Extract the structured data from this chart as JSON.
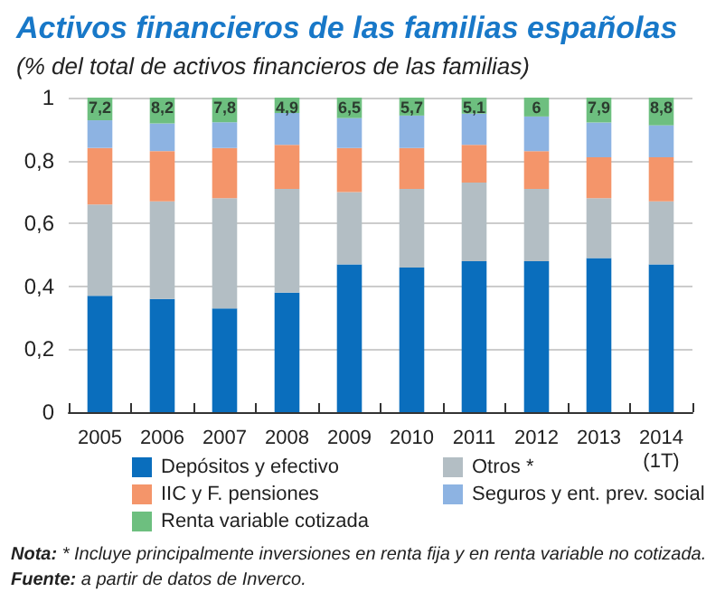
{
  "chart_data": {
    "type": "bar",
    "stacked": true,
    "title": "Activos financieros de las familias españolas",
    "subtitle": "(% del total de activos financieros de las familias)",
    "categories": [
      "2005",
      "2006",
      "2007",
      "2008",
      "2009",
      "2010",
      "2011",
      "2012",
      "2013",
      "2014\n(1T)"
    ],
    "series": [
      {
        "name": "Depósitos y efectivo",
        "color": "#0a6ebd",
        "values": [
          0.37,
          0.36,
          0.33,
          0.38,
          0.47,
          0.46,
          0.48,
          0.48,
          0.49,
          0.47
        ]
      },
      {
        "name": "Otros *",
        "color": "#b3bec4",
        "values": [
          0.29,
          0.31,
          0.35,
          0.33,
          0.23,
          0.25,
          0.25,
          0.23,
          0.19,
          0.2
        ]
      },
      {
        "name": "IIC y F. pensiones",
        "color": "#f4956a",
        "values": [
          0.18,
          0.16,
          0.16,
          0.14,
          0.14,
          0.13,
          0.12,
          0.12,
          0.13,
          0.14
        ]
      },
      {
        "name": "Seguros y ent. prev. social",
        "color": "#8db3e2",
        "values": [
          0.088,
          0.088,
          0.082,
          0.101,
          0.095,
          0.103,
          0.099,
          0.11,
          0.111,
          0.102
        ]
      },
      {
        "name": "Renta variable cotizada",
        "color": "#6dbf7f",
        "values": [
          0.072,
          0.082,
          0.078,
          0.049,
          0.065,
          0.057,
          0.051,
          0.06,
          0.079,
          0.088
        ]
      }
    ],
    "ylim": [
      0,
      1
    ],
    "yticks": [
      0,
      {
        "value": 0.2,
        "label": "0,2"
      },
      {
        "value": 0.4,
        "label": "0,4"
      },
      {
        "value": 0.6,
        "label": "0,6"
      },
      {
        "value": 0.8,
        "label": "0,8"
      },
      1
    ],
    "grid": "y",
    "legend": "bottom",
    "annotations": [
      {
        "text": "7,2",
        "x": "2005",
        "y": 1
      },
      {
        "text": "8,2",
        "x": "2006",
        "y": 1
      },
      {
        "text": "7,8",
        "x": "2007",
        "y": 1
      },
      {
        "text": "4,9",
        "x": "2008",
        "y": 1
      },
      {
        "text": "6,5",
        "x": "2009",
        "y": 1
      },
      {
        "text": "5,7",
        "x": "2010",
        "y": 1
      },
      {
        "text": "5,1",
        "x": "2011",
        "y": 1
      },
      {
        "text": "6",
        "x": "2012",
        "y": 1
      },
      {
        "text": "7,9",
        "x": "2013",
        "y": 1
      },
      {
        "text": "8,8",
        "x": "2014\n(1T)",
        "y": 1
      },
      "Nota: * Incluye principalmente inversiones en renta fija y en renta variable no cotizada.",
      "Fuente: a partir de datos de Inverco."
    ]
  }
}
